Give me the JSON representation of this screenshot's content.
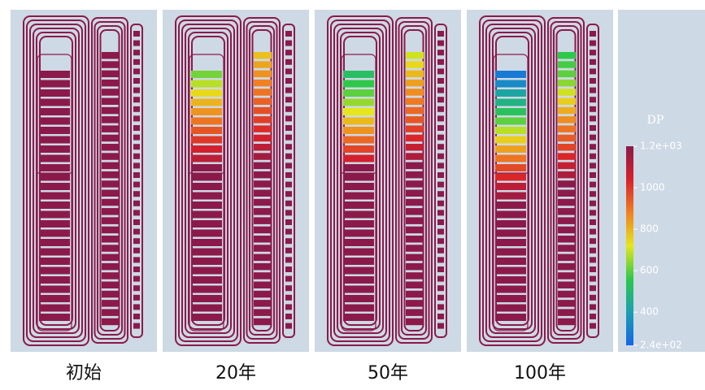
{
  "panels": [
    {
      "label": "初始",
      "left_blocks": [
        1200,
        1200,
        1200,
        1200,
        1200,
        1200,
        1200,
        1200,
        1200,
        1200,
        1200,
        1200,
        1200,
        1200,
        1200,
        1200,
        1200,
        1200,
        1200,
        1200,
        1200,
        1200,
        1200,
        1200,
        1200,
        1200,
        1200
      ],
      "right_blocks": [
        1200,
        1200,
        1200,
        1200,
        1200,
        1200,
        1200,
        1200,
        1200,
        1200,
        1200,
        1200,
        1200,
        1200,
        1200,
        1200,
        1200,
        1200,
        1200,
        1200,
        1200,
        1200,
        1200,
        1200,
        1200,
        1200,
        1200,
        1200,
        1200,
        1200
      ]
    },
    {
      "label": "20年",
      "left_blocks": [
        620,
        680,
        740,
        800,
        850,
        900,
        950,
        1000,
        1050,
        1100,
        1200,
        1200,
        1200,
        1200,
        1200,
        1200,
        1200,
        1200,
        1200,
        1200,
        1200,
        1200,
        1200,
        1200,
        1200,
        1200,
        1200
      ],
      "right_blocks": [
        780,
        820,
        850,
        880,
        900,
        930,
        960,
        990,
        1020,
        1050,
        1100,
        1150,
        1200,
        1200,
        1200,
        1200,
        1200,
        1200,
        1200,
        1200,
        1200,
        1200,
        1200,
        1200,
        1200,
        1200,
        1200,
        1200,
        1200,
        1200
      ]
    },
    {
      "label": "50年",
      "left_blocks": [
        520,
        560,
        600,
        650,
        720,
        790,
        850,
        920,
        980,
        1050,
        1200,
        1200,
        1200,
        1200,
        1200,
        1200,
        1200,
        1200,
        1200,
        1200,
        1200,
        1200,
        1200,
        1200,
        1200,
        1200,
        1200
      ],
      "right_blocks": [
        700,
        740,
        790,
        830,
        860,
        890,
        920,
        950,
        990,
        1030,
        1080,
        1130,
        1200,
        1200,
        1200,
        1200,
        1200,
        1200,
        1200,
        1200,
        1200,
        1200,
        1200,
        1200,
        1200,
        1200,
        1200,
        1200,
        1200,
        1200
      ]
    },
    {
      "label": "100年",
      "left_blocks": [
        300,
        340,
        420,
        470,
        530,
        600,
        680,
        760,
        830,
        900,
        970,
        1030,
        1100,
        1150,
        1200,
        1200,
        1200,
        1200,
        1200,
        1200,
        1200,
        1200,
        1200,
        1200,
        1200,
        1200,
        1200
      ],
      "right_blocks": [
        560,
        580,
        600,
        640,
        700,
        760,
        810,
        860,
        900,
        940,
        980,
        1030,
        1080,
        1130,
        1200,
        1200,
        1200,
        1200,
        1200,
        1200,
        1200,
        1200,
        1200,
        1200,
        1200,
        1200,
        1200,
        1200,
        1200,
        1200
      ]
    }
  ],
  "colorbar": {
    "title": "DP",
    "range": [
      240,
      1200
    ],
    "ticks": [
      {
        "value": 1200,
        "label": "1.2e+03"
      },
      1000,
      800,
      600,
      400,
      {
        "value": 240,
        "label": "2.4e+02"
      }
    ],
    "colormap": [
      "#1565e8",
      "#1aa0b0",
      "#2ec84a",
      "#e6e619",
      "#f08020",
      "#d8202a",
      "#8b1a4a"
    ]
  }
}
